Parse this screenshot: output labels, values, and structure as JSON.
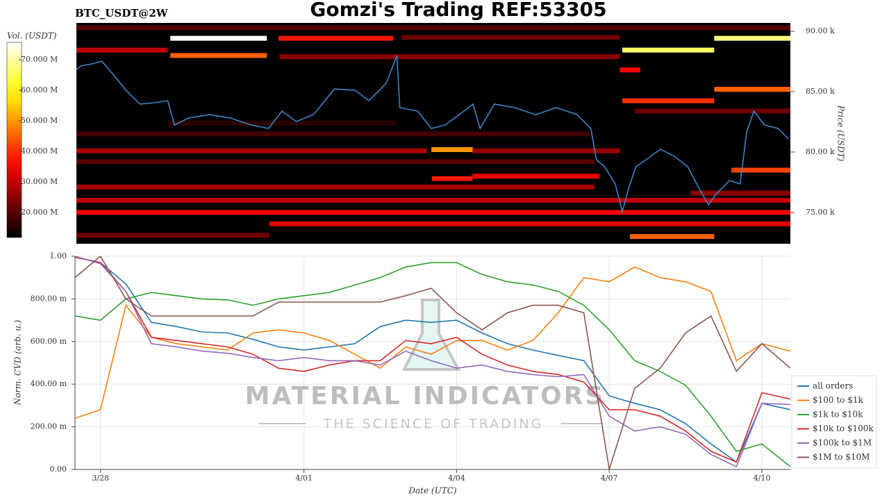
{
  "title": "Gomzi's Trading REF:53305",
  "watermark": {
    "name": "MATERIAL INDICATORS",
    "tagline": "THE SCIENCE OF TRADING"
  },
  "chart_data": [
    {
      "type": "heatmap",
      "title": "BTC_USDT@2W",
      "ylabel": "Price (USDT)",
      "xlim": [
        -0.5,
        13.56
      ],
      "ylim": [
        72400,
        90700
      ],
      "yticks": [
        {
          "value": 75000,
          "label": "75.00 k"
        },
        {
          "value": 80000,
          "label": "80.00 k"
        },
        {
          "value": 85000,
          "label": "85.00 k"
        },
        {
          "value": 90000,
          "label": "90.00 k"
        }
      ],
      "colorbar": {
        "label": "Vol. (USDT)",
        "lim": [
          11800000,
          75700000
        ],
        "ticks": [
          {
            "value": 20000000,
            "label": "20.000 M"
          },
          {
            "value": 30000000,
            "label": "30.000 M"
          },
          {
            "value": 40000000,
            "label": "40.000 M"
          },
          {
            "value": 50000000,
            "label": "50.000 M"
          },
          {
            "value": 60000000,
            "label": "60.000 M"
          },
          {
            "value": 70000000,
            "label": "70.000 M"
          }
        ]
      },
      "levels": {
        "price": [
          90300,
          89425,
          89425,
          89425,
          89500,
          88450,
          88000,
          88450,
          87900,
          86800,
          85200,
          84250,
          83400,
          81500,
          80200,
          80100,
          80100,
          78500,
          78000,
          77800,
          77100,
          76000,
          75000,
          74050,
          73000,
          73100,
          76600,
          79200,
          82400
        ],
        "x_start": [
          -0.5,
          1.35,
          3.48,
          12.06,
          5.9,
          10.25,
          1.35,
          -0.5,
          3.5,
          10.2,
          12.06,
          10.25,
          10.5,
          -0.5,
          6.49,
          -0.5,
          7.3,
          12.4,
          7.3,
          6.5,
          -0.5,
          -0.5,
          -0.5,
          3.3,
          10.4,
          -0.5,
          11.6,
          -0.5,
          1.3
        ],
        "x_end": [
          13.56,
          3.25,
          5.74,
          13.56,
          10.2,
          12.06,
          3.25,
          1.3,
          10.2,
          10.6,
          13.56,
          12.06,
          13.56,
          9.6,
          7.31,
          6.4,
          10.2,
          13.56,
          9.8,
          7.3,
          9.7,
          13.56,
          13.56,
          13.56,
          12.06,
          3.3,
          13.56,
          9.7,
          5.8
        ],
        "volume": [
          20000000,
          76000000,
          38000000,
          68000000,
          22000000,
          66000000,
          45000000,
          30000000,
          25000000,
          36000000,
          45000000,
          40000000,
          22000000,
          18000000,
          50000000,
          28000000,
          26000000,
          42000000,
          34000000,
          38000000,
          27000000,
          30000000,
          35000000,
          33000000,
          45000000,
          22000000,
          25000000,
          20000000,
          16000000
        ]
      },
      "line": {
        "color": "#3a86c8",
        "x": [
          -0.5,
          -0.41,
          -0.2,
          0,
          0.2,
          0.48,
          0.75,
          1.02,
          1.3,
          1.43,
          1.71,
          2.12,
          2.53,
          2.94,
          3.28,
          3.55,
          3.83,
          4.17,
          4.58,
          4.99,
          5.26,
          5.6,
          5.81,
          5.87,
          6.22,
          6.49,
          6.76,
          7.04,
          7.31,
          7.45,
          7.73,
          8.13,
          8.54,
          8.95,
          9.36,
          9.63,
          9.74,
          9.9,
          10.11,
          10.25,
          10.38,
          10.52,
          10.72,
          11.0,
          11.27,
          11.54,
          11.75,
          11.95,
          12.09,
          12.36,
          12.57,
          12.7,
          12.84,
          13.05,
          13.32,
          13.52
        ],
        "values": [
          86840,
          87130,
          87300,
          87530,
          86550,
          85110,
          83970,
          84080,
          84250,
          82240,
          82820,
          83100,
          82820,
          82240,
          81950,
          83390,
          82530,
          83100,
          85230,
          85120,
          84250,
          85690,
          87990,
          83680,
          83390,
          81950,
          82240,
          83100,
          83970,
          81950,
          83970,
          83680,
          83100,
          83680,
          83100,
          81950,
          79370,
          78790,
          77360,
          75060,
          77070,
          78790,
          79370,
          80230,
          79660,
          78790,
          77070,
          75630,
          76490,
          77640,
          77360,
          81670,
          83390,
          82240,
          81950,
          81090
        ]
      }
    },
    {
      "type": "line",
      "xlabel": "Date (UTC)",
      "ylabel": "Norm. CVD (arb. u.)",
      "xlim": [
        -0.5,
        13.56
      ],
      "ylim": [
        0,
        1
      ],
      "grid": true,
      "legend": "outside lower right",
      "xticks": [
        {
          "value": 0,
          "label": "3/28"
        },
        {
          "value": 4,
          "label": "4/01"
        },
        {
          "value": 7,
          "label": "4/04"
        },
        {
          "value": 10,
          "label": "4/07"
        },
        {
          "value": 13,
          "label": "4/10"
        }
      ],
      "yticks": [
        {
          "value": 0,
          "label": "0.00"
        },
        {
          "value": 0.2,
          "label": "200.00 m"
        },
        {
          "value": 0.4,
          "label": "400.00 m"
        },
        {
          "value": 0.6,
          "label": "600.00 m"
        },
        {
          "value": 0.8,
          "label": "800.00 m"
        },
        {
          "value": 1,
          "label": "1.00"
        }
      ],
      "x": [
        -0.5,
        0,
        0.5,
        1,
        1.5,
        2,
        2.5,
        3,
        3.5,
        4,
        4.5,
        5,
        5.5,
        6,
        6.5,
        7,
        7.5,
        8,
        8.5,
        9,
        9.5,
        10,
        10.5,
        11,
        11.5,
        12,
        12.5,
        13,
        13.56
      ],
      "series": [
        {
          "name": "all orders",
          "color": "#1f77b4",
          "values": [
            0.997,
            0.97,
            0.87,
            0.69,
            0.67,
            0.645,
            0.64,
            0.61,
            0.575,
            0.56,
            0.575,
            0.59,
            0.67,
            0.7,
            0.69,
            0.7,
            0.64,
            0.59,
            0.56,
            0.535,
            0.51,
            0.345,
            0.31,
            0.28,
            0.215,
            0.12,
            0.035,
            0.31,
            0.28
          ]
        },
        {
          "name": "$100 to $1k",
          "color": "#ff7f0e",
          "values": [
            0.24,
            0.28,
            0.77,
            0.62,
            0.59,
            0.575,
            0.56,
            0.64,
            0.655,
            0.64,
            0.605,
            0.54,
            0.475,
            0.575,
            0.54,
            0.605,
            0.605,
            0.56,
            0.605,
            0.735,
            0.9,
            0.88,
            0.95,
            0.9,
            0.88,
            0.835,
            0.51,
            0.59,
            0.555
          ]
        },
        {
          "name": "$1k to $10k",
          "color": "#2ca02c",
          "values": [
            0.72,
            0.7,
            0.8,
            0.83,
            0.815,
            0.8,
            0.795,
            0.77,
            0.8,
            0.815,
            0.83,
            0.865,
            0.9,
            0.95,
            0.97,
            0.97,
            0.915,
            0.88,
            0.865,
            0.835,
            0.77,
            0.655,
            0.51,
            0.46,
            0.395,
            0.25,
            0.085,
            0.12,
            0.013
          ]
        },
        {
          "name": "$10k to $100k",
          "color": "#d62728",
          "values": [
            0.995,
            0.97,
            0.835,
            0.62,
            0.605,
            0.59,
            0.575,
            0.54,
            0.475,
            0.46,
            0.49,
            0.51,
            0.51,
            0.605,
            0.59,
            0.62,
            0.54,
            0.49,
            0.46,
            0.445,
            0.41,
            0.28,
            0.28,
            0.25,
            0.18,
            0.085,
            0.035,
            0.36,
            0.33
          ]
        },
        {
          "name": "$100k to $1M",
          "color": "#9467bd",
          "values": [
            1,
            0.965,
            0.835,
            0.59,
            0.575,
            0.555,
            0.545,
            0.525,
            0.51,
            0.525,
            0.51,
            0.51,
            0.49,
            0.555,
            0.51,
            0.475,
            0.49,
            0.46,
            0.445,
            0.435,
            0.445,
            0.25,
            0.18,
            0.2,
            0.165,
            0.07,
            0.013,
            0.31,
            0.305
          ]
        },
        {
          "name": "$1M to $10M",
          "color": "#8c564b",
          "values": [
            0.9,
            1,
            0.8,
            0.72,
            0.72,
            0.72,
            0.72,
            0.72,
            0.785,
            0.785,
            0.785,
            0.785,
            0.785,
            0.815,
            0.85,
            0.735,
            0.655,
            0.735,
            0.77,
            0.77,
            0.735,
            0,
            0.38,
            0.475,
            0.64,
            0.72,
            0.46,
            0.59,
            0.475
          ]
        }
      ]
    }
  ]
}
